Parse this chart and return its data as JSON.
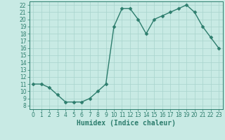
{
  "x": [
    0,
    1,
    2,
    3,
    4,
    5,
    6,
    7,
    8,
    9,
    10,
    11,
    12,
    13,
    14,
    15,
    16,
    17,
    18,
    19,
    20,
    21,
    22,
    23
  ],
  "y": [
    11,
    11,
    10.5,
    9.5,
    8.5,
    8.5,
    8.5,
    9.0,
    10.0,
    11.0,
    19.0,
    21.5,
    21.5,
    20.0,
    18.0,
    20.0,
    20.5,
    21.0,
    21.5,
    22.0,
    21.0,
    19.0,
    17.5,
    16.0
  ],
  "line_color": "#2d7d6d",
  "marker_color": "#2d7d6d",
  "bg_color": "#c8eae4",
  "grid_color": "#a8d4cc",
  "xlabel": "Humidex (Indice chaleur)",
  "xlim": [
    -0.5,
    23.5
  ],
  "ylim": [
    7.5,
    22.5
  ],
  "yticks": [
    8,
    9,
    10,
    11,
    12,
    13,
    14,
    15,
    16,
    17,
    18,
    19,
    20,
    21,
    22
  ],
  "xticks": [
    0,
    1,
    2,
    3,
    4,
    5,
    6,
    7,
    8,
    9,
    10,
    11,
    12,
    13,
    14,
    15,
    16,
    17,
    18,
    19,
    20,
    21,
    22,
    23
  ],
  "tick_fontsize": 5.5,
  "xlabel_fontsize": 7,
  "marker_size": 2.5,
  "line_width": 1.0
}
